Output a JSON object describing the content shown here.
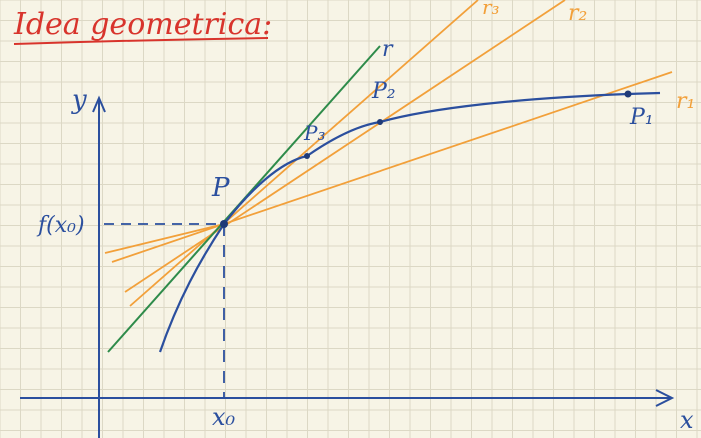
{
  "title": "Idea geometrica:",
  "labels": {
    "y_axis": "y",
    "x_axis": "x",
    "x0": "x₀",
    "fx0": "f(x₀)",
    "P": "P",
    "P1": "P₁",
    "P2": "P₂",
    "P3": "P₃",
    "r": "r",
    "r1": "r₁",
    "r2": "r₂",
    "r3": "r₃"
  },
  "colors": {
    "background": "#f7f4e6",
    "grid": "#dcd8c5",
    "axes": "#2b4f9e",
    "curve": "#2b4f9e",
    "secants": "#f2a03a",
    "tangent": "#2e8b4a",
    "title": "#d8342c"
  }
}
